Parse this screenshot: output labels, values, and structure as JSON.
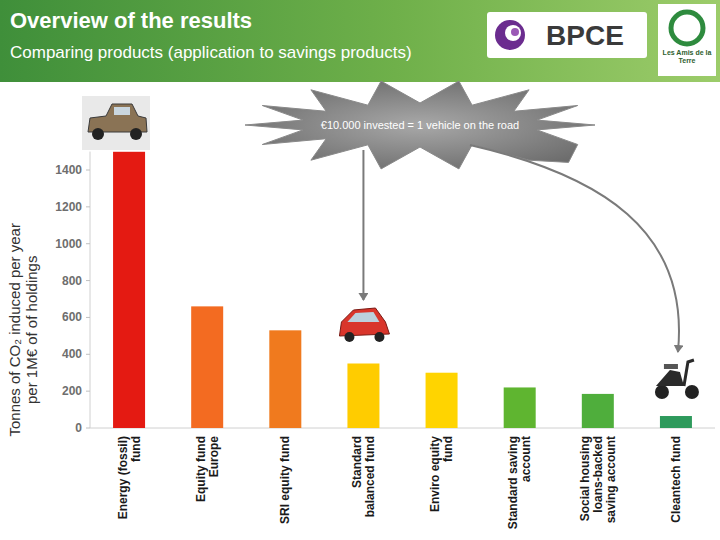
{
  "chart_data": {
    "type": "bar",
    "title": "Overview of the results",
    "subtitle": "Comparing products (application to savings products)",
    "y_label": [
      "Tonnes of CO₂ induced per year",
      "per 1M€ of of holdings"
    ],
    "annotation": "€10.000 invested = 1 vehicle on the road",
    "logos": [
      "BPCE",
      "Les Amis de la Terre"
    ],
    "categories": [
      "Energy (fossil) fund",
      "Equity fund Europe",
      "SRI equity fund",
      "Standard balanced fund",
      "Enviro equity fund",
      "Standard saving account",
      "Social housing loans-backed saving account",
      "Cleantech fund"
    ],
    "values": [
      1500,
      660,
      530,
      350,
      300,
      220,
      185,
      65
    ],
    "colors": [
      "#e41a12",
      "#f36b21",
      "#f07a1e",
      "#ffcc00",
      "#ffd400",
      "#5fb530",
      "#4fae3c",
      "#2e9a5c"
    ],
    "ylim": [
      0,
      1500
    ],
    "yticks": [
      0,
      200,
      400,
      600,
      800,
      1000,
      1200,
      1400
    ],
    "grid": false
  }
}
